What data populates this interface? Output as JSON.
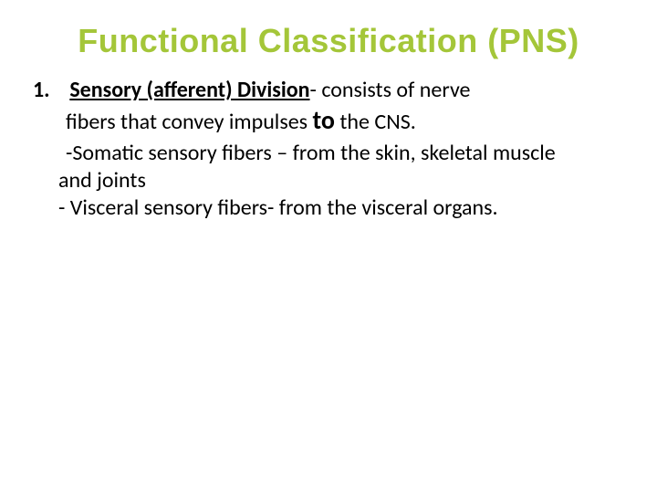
{
  "slide": {
    "title": "Functional Classification (PNS)",
    "title_color": "#a4c639",
    "body_color": "#000000",
    "background_color": "#ffffff",
    "item1_number": "1.",
    "item1_headword": "Sensory (afferent) Division",
    "item1_rest_a": "- consists of nerve",
    "item1_rest_b_prefix": "fibers that convey impulses ",
    "item1_to": "to",
    "item1_rest_b_suffix": " the CNS.",
    "sub1_a": " -Somatic sensory fibers – from the skin, skeletal muscle",
    "sub1_b": "and joints",
    "sub2": "- Visceral sensory fibers- from the visceral organs."
  }
}
